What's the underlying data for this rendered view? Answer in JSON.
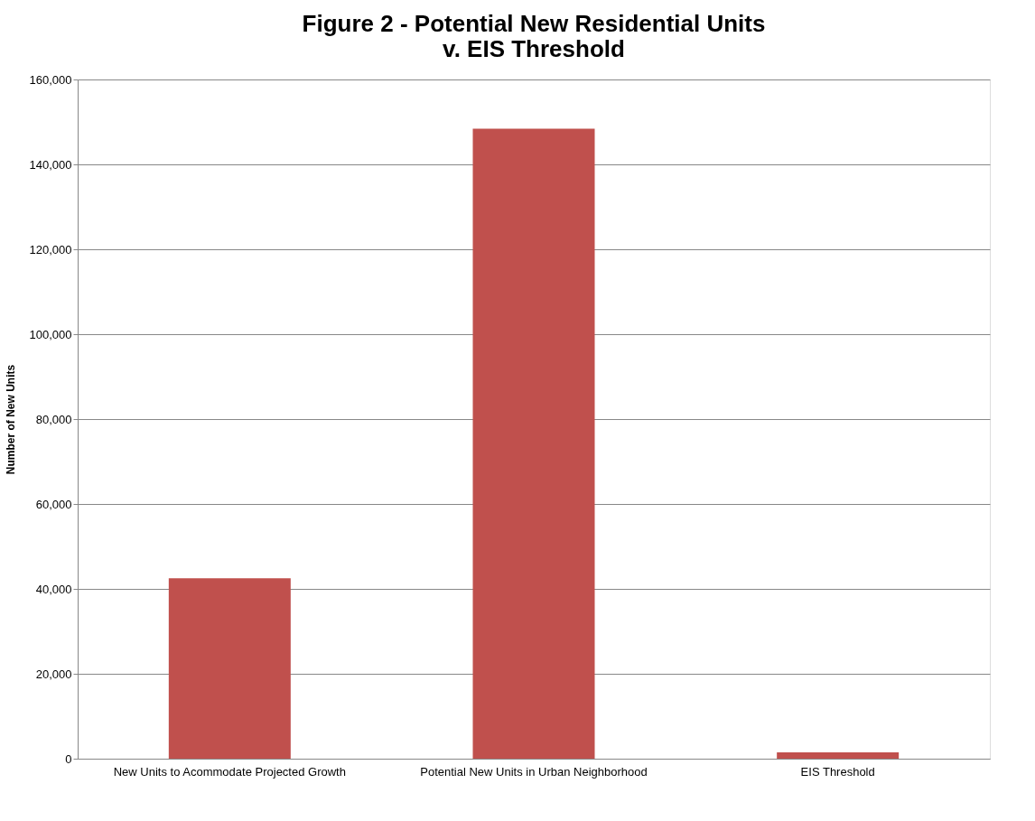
{
  "chart_data": {
    "type": "bar",
    "title": [
      "Figure 2 - Potential New Residential Units",
      "v. EIS Threshold"
    ],
    "ylabel": "Number of New Units",
    "categories": [
      "New Units to Acommodate Projected Growth",
      "Potential New Units in Urban Neighborhood",
      "EIS Threshold"
    ],
    "values": [
      42500,
      148400,
      1500
    ],
    "color": "#c0504d",
    "ylim": [
      0,
      160000
    ],
    "yticks": [
      {
        "value": 0,
        "label": "0"
      },
      {
        "value": 20000,
        "label": "20,000"
      },
      {
        "value": 40000,
        "label": "40,000"
      },
      {
        "value": 60000,
        "label": "60,000"
      },
      {
        "value": 80000,
        "label": "80,000"
      },
      {
        "value": 100000,
        "label": "100,000"
      },
      {
        "value": 120000,
        "label": "120,000"
      },
      {
        "value": 140000,
        "label": "140,000"
      },
      {
        "value": 160000,
        "label": "160,000"
      }
    ],
    "grid": "y"
  }
}
